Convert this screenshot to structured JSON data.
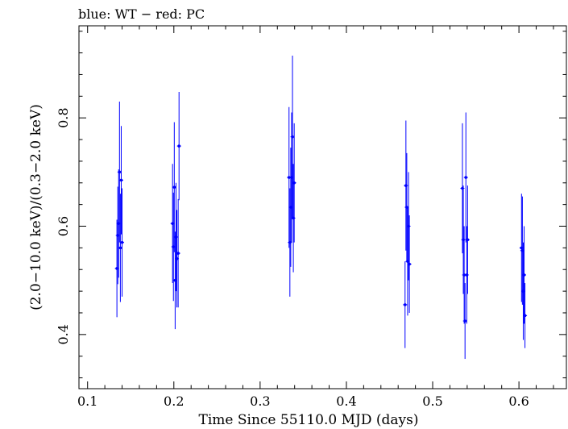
{
  "chart_data": {
    "type": "scatter",
    "title": "blue: WT − red: PC",
    "xlabel": "Time Since 55110.0 MJD (days)",
    "ylabel": "(2.0−10.0 keV)/(0.3−2.0 keV)",
    "xlim": [
      0.09,
      0.655
    ],
    "ylim": [
      0.3,
      0.97
    ],
    "xticks": [
      0.1,
      0.2,
      0.3,
      0.4,
      0.5,
      0.6
    ],
    "yticks": [
      0.4,
      0.6,
      0.8
    ],
    "xtick_labels": [
      "0.1",
      "0.2",
      "0.3",
      "0.4",
      "0.5",
      "0.6"
    ],
    "ytick_labels": [
      "0.4",
      "0.6",
      "0.8"
    ],
    "grid": false,
    "series": [
      {
        "color": "#0000ff",
        "points": [
          {
            "x": 0.134,
            "y": 0.522,
            "err": 0.09
          },
          {
            "x": 0.135,
            "y": 0.583,
            "err": 0.09
          },
          {
            "x": 0.136,
            "y": 0.605,
            "err": 0.1
          },
          {
            "x": 0.137,
            "y": 0.7,
            "err": 0.13
          },
          {
            "x": 0.138,
            "y": 0.56,
            "err": 0.1
          },
          {
            "x": 0.139,
            "y": 0.685,
            "err": 0.1
          },
          {
            "x": 0.14,
            "y": 0.57,
            "err": 0.1
          },
          {
            "x": 0.1985,
            "y": 0.605,
            "err": 0.11
          },
          {
            "x": 0.1995,
            "y": 0.562,
            "err": 0.1
          },
          {
            "x": 0.2005,
            "y": 0.672,
            "err": 0.12
          },
          {
            "x": 0.2015,
            "y": 0.5,
            "err": 0.09
          },
          {
            "x": 0.2025,
            "y": 0.58,
            "err": 0.1
          },
          {
            "x": 0.2035,
            "y": 0.54,
            "err": 0.09
          },
          {
            "x": 0.205,
            "y": 0.55,
            "err": 0.1
          },
          {
            "x": 0.206,
            "y": 0.748,
            "err": 0.1
          },
          {
            "x": 0.3335,
            "y": 0.69,
            "err": 0.13
          },
          {
            "x": 0.3345,
            "y": 0.57,
            "err": 0.1
          },
          {
            "x": 0.3355,
            "y": 0.635,
            "err": 0.11
          },
          {
            "x": 0.3365,
            "y": 0.69,
            "err": 0.12
          },
          {
            "x": 0.3375,
            "y": 0.765,
            "err": 0.15
          },
          {
            "x": 0.3385,
            "y": 0.615,
            "err": 0.1
          },
          {
            "x": 0.3395,
            "y": 0.68,
            "err": 0.11
          },
          {
            "x": 0.468,
            "y": 0.455,
            "err": 0.08
          },
          {
            "x": 0.469,
            "y": 0.675,
            "err": 0.12
          },
          {
            "x": 0.47,
            "y": 0.635,
            "err": 0.1
          },
          {
            "x": 0.471,
            "y": 0.535,
            "err": 0.1
          },
          {
            "x": 0.472,
            "y": 0.6,
            "err": 0.1
          },
          {
            "x": 0.473,
            "y": 0.53,
            "err": 0.09
          },
          {
            "x": 0.5345,
            "y": 0.67,
            "err": 0.12
          },
          {
            "x": 0.5355,
            "y": 0.575,
            "err": 0.1
          },
          {
            "x": 0.5365,
            "y": 0.51,
            "err": 0.09
          },
          {
            "x": 0.5375,
            "y": 0.425,
            "err": 0.07
          },
          {
            "x": 0.5385,
            "y": 0.69,
            "err": 0.12
          },
          {
            "x": 0.5395,
            "y": 0.51,
            "err": 0.09
          },
          {
            "x": 0.5405,
            "y": 0.575,
            "err": 0.1
          },
          {
            "x": 0.603,
            "y": 0.56,
            "err": 0.1
          },
          {
            "x": 0.604,
            "y": 0.555,
            "err": 0.1
          },
          {
            "x": 0.605,
            "y": 0.48,
            "err": 0.09
          },
          {
            "x": 0.606,
            "y": 0.51,
            "err": 0.09
          },
          {
            "x": 0.607,
            "y": 0.435,
            "err": 0.06
          }
        ]
      }
    ]
  }
}
